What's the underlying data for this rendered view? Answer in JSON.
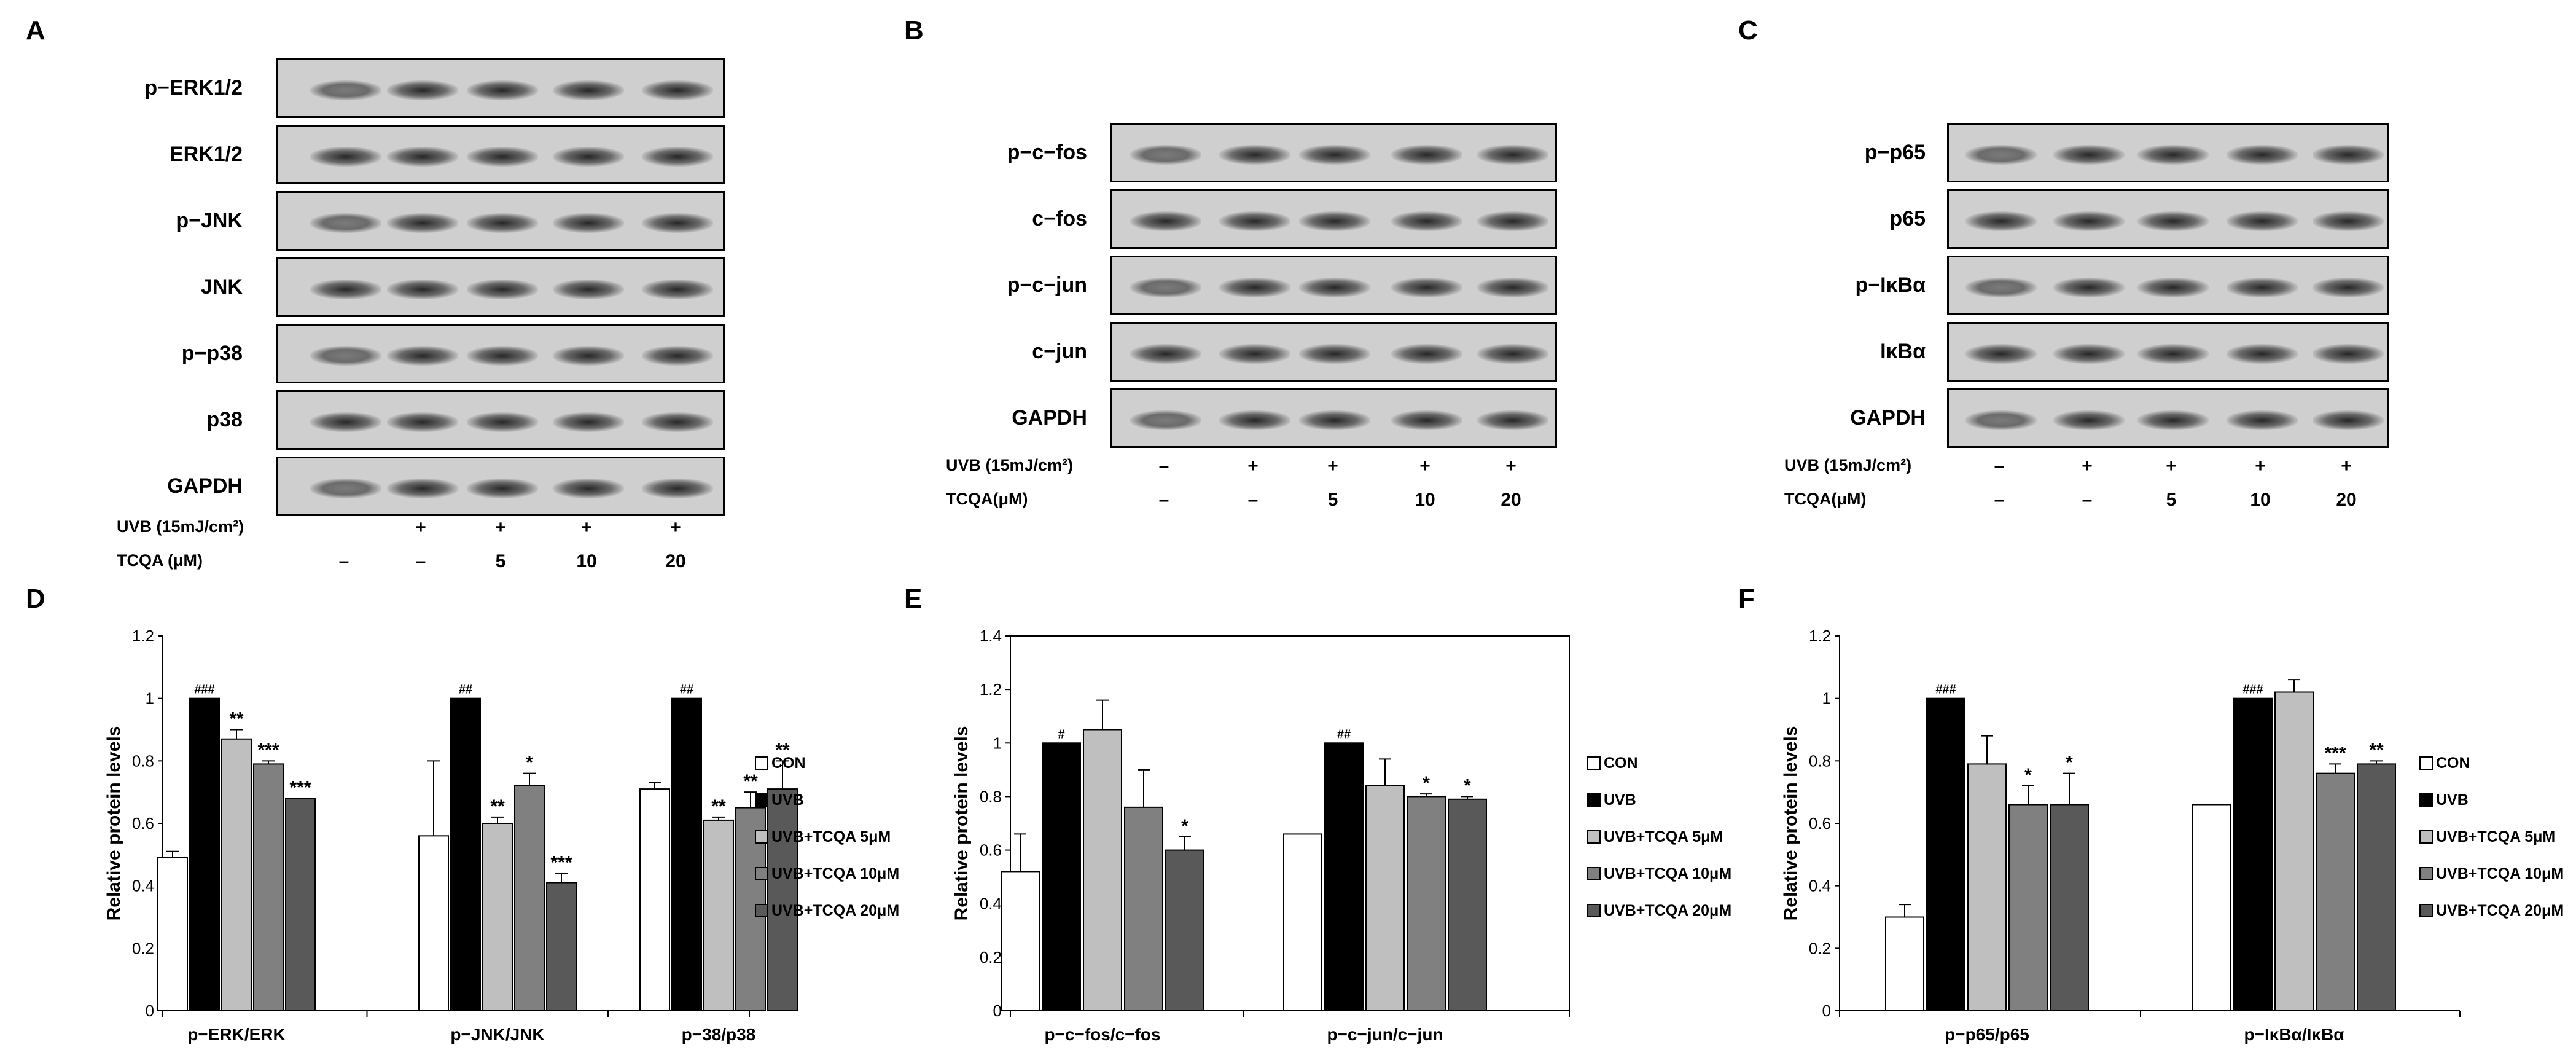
{
  "panels": {
    "A": "A",
    "B": "B",
    "C": "C",
    "D": "D",
    "E": "E",
    "F": "F"
  },
  "blots": {
    "A": {
      "labels": [
        "p−ERK1/2",
        "ERK1/2",
        "p−JNK",
        "JNK",
        "p−p38",
        "p38",
        "GAPDH"
      ],
      "uvb_label": "UVB (15mJ/cm²)",
      "tcqa_label": "TCQA (μM)",
      "uvb": [
        "",
        "+",
        "+",
        "+",
        "+"
      ],
      "tcqa": [
        "–",
        "–",
        "5",
        "10",
        "20"
      ]
    },
    "B": {
      "labels": [
        "p−c−fos",
        "c−fos",
        "p−c−jun",
        "c−jun",
        "GAPDH"
      ],
      "uvb_label": "UVB (15mJ/cm²)",
      "tcqa_label": "TCQA(μM)",
      "uvb": [
        "–",
        "+",
        "+",
        "+",
        "+"
      ],
      "tcqa": [
        "–",
        "–",
        "5",
        "10",
        "20"
      ]
    },
    "C": {
      "labels": [
        "p−p65",
        "p65",
        "p−IκBα",
        "IκBα",
        "GAPDH"
      ],
      "uvb_label": "UVB (15mJ/cm²)",
      "tcqa_label": "TCQA(μM)",
      "uvb": [
        "–",
        "+",
        "+",
        "+",
        "+"
      ],
      "tcqa": [
        "–",
        "–",
        "5",
        "10",
        "20"
      ]
    }
  },
  "legend": [
    "CON",
    "UVB",
    "UVB+TCQA 5μM",
    "UVB+TCQA 10μM",
    "UVB+TCQA 20μM"
  ],
  "colors": [
    "#ffffff",
    "#000000",
    "#bfbfbf",
    "#808080",
    "#595959"
  ],
  "chart_data": [
    {
      "type": "bar",
      "panel": "D",
      "ylabel": "Relative protein levels",
      "ylim": [
        0,
        1.2
      ],
      "yticks": [
        "0",
        "0.2",
        "0.4",
        "0.6",
        "0.8",
        "1",
        "1.2"
      ],
      "categories": [
        "p−ERK/ERK",
        "p−JNK/JNK",
        "p−38/p38"
      ],
      "series": [
        {
          "name": "CON",
          "values": [
            0.49,
            0.56,
            0.71
          ],
          "err": [
            0.02,
            0.24,
            0.02
          ],
          "sig": [
            "",
            "",
            ""
          ]
        },
        {
          "name": "UVB",
          "values": [
            1.0,
            1.0,
            1.0
          ],
          "err": [
            0.0,
            0.0,
            0.0
          ],
          "sig": [
            "###",
            "##",
            "##"
          ]
        },
        {
          "name": "UVB+TCQA 5μM",
          "values": [
            0.87,
            0.6,
            0.61
          ],
          "err": [
            0.03,
            0.02,
            0.01
          ],
          "sig": [
            "**",
            "**",
            "**"
          ]
        },
        {
          "name": "UVB+TCQA 10μM",
          "values": [
            0.79,
            0.72,
            0.65
          ],
          "err": [
            0.01,
            0.04,
            0.05
          ],
          "sig": [
            "***",
            "*",
            "**"
          ]
        },
        {
          "name": "UVB+TCQA 20μM",
          "values": [
            0.68,
            0.41,
            0.71
          ],
          "err": [
            0.0,
            0.03,
            0.09
          ],
          "sig": [
            "***",
            "***",
            "**"
          ]
        }
      ]
    },
    {
      "type": "bar",
      "panel": "E",
      "ylabel": "Relative protein levels",
      "ylim": [
        0,
        1.4
      ],
      "yticks": [
        "0",
        "0.2",
        "0.4",
        "0.6",
        "0.8",
        "1",
        "1.2",
        "1.4"
      ],
      "categories": [
        "p−c−fos/c−fos",
        "p−c−jun/c−jun"
      ],
      "series": [
        {
          "name": "CON",
          "values": [
            0.52,
            0.66
          ],
          "err": [
            0.14,
            0.0
          ],
          "sig": [
            "",
            ""
          ]
        },
        {
          "name": "UVB",
          "values": [
            1.0,
            1.0
          ],
          "err": [
            0.0,
            0.0
          ],
          "sig": [
            "#",
            "##"
          ]
        },
        {
          "name": "UVB+TCQA 5μM",
          "values": [
            1.05,
            0.84
          ],
          "err": [
            0.11,
            0.1
          ],
          "sig": [
            "",
            ""
          ]
        },
        {
          "name": "UVB+TCQA 10μM",
          "values": [
            0.76,
            0.8
          ],
          "err": [
            0.14,
            0.01
          ],
          "sig": [
            "",
            "*"
          ]
        },
        {
          "name": "UVB+TCQA 20μM",
          "values": [
            0.6,
            0.79
          ],
          "err": [
            0.05,
            0.01
          ],
          "sig": [
            "*",
            "*"
          ]
        }
      ]
    },
    {
      "type": "bar",
      "panel": "F",
      "ylabel": "Relative protein levels",
      "ylim": [
        0,
        1.2
      ],
      "yticks": [
        "0",
        "0.2",
        "0.4",
        "0.6",
        "0.8",
        "1",
        "1.2"
      ],
      "categories": [
        "p−p65/p65",
        "p−IκBα/IκBα"
      ],
      "series": [
        {
          "name": "CON",
          "values": [
            0.3,
            0.66
          ],
          "err": [
            0.04,
            0.0
          ],
          "sig": [
            "",
            ""
          ]
        },
        {
          "name": "UVB",
          "values": [
            1.0,
            1.0
          ],
          "err": [
            0.0,
            0.0
          ],
          "sig": [
            "###",
            "###"
          ]
        },
        {
          "name": "UVB+TCQA 5μM",
          "values": [
            0.79,
            1.02
          ],
          "err": [
            0.09,
            0.04
          ],
          "sig": [
            "",
            ""
          ]
        },
        {
          "name": "UVB+TCQA 10μM",
          "values": [
            0.66,
            0.76
          ],
          "err": [
            0.06,
            0.03
          ],
          "sig": [
            "*",
            "***"
          ]
        },
        {
          "name": "UVB+TCQA 20μM",
          "values": [
            0.66,
            0.79
          ],
          "err": [
            0.1,
            0.01
          ],
          "sig": [
            "*",
            "**"
          ]
        }
      ]
    }
  ]
}
